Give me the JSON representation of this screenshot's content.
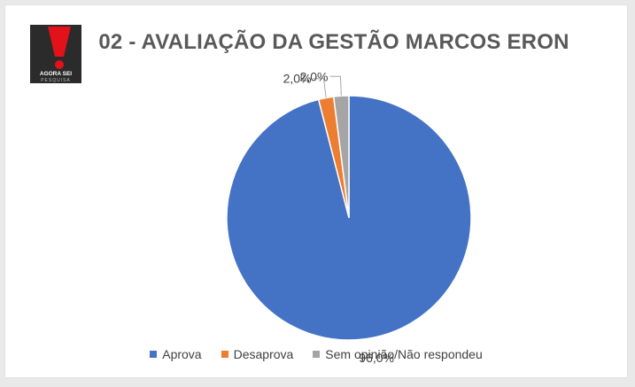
{
  "colors": {
    "background": "#e9e9ea",
    "card": "#ffffff",
    "title": "#595959",
    "label": "#404040",
    "logo_red": "#e2111a",
    "logo_dark": "#2b2b2b"
  },
  "logo": {
    "line1": "AGORA SEI",
    "line2": "PESQUISA"
  },
  "chart_data": {
    "type": "pie",
    "title": "02 - AVALIAÇÃO DA GESTÃO MARCOS ERON",
    "legend_position": "bottom",
    "slices": [
      {
        "name": "Aprova",
        "value": 96.0,
        "label": "96,0%",
        "color": "#4472c4"
      },
      {
        "name": "Desaprova",
        "value": 2.0,
        "label": "2,0%",
        "color": "#ed7d31"
      },
      {
        "name": "Sem opinião/Não respondeu",
        "value": 2.0,
        "label": "2,0%",
        "color": "#a5a5a5"
      }
    ]
  }
}
